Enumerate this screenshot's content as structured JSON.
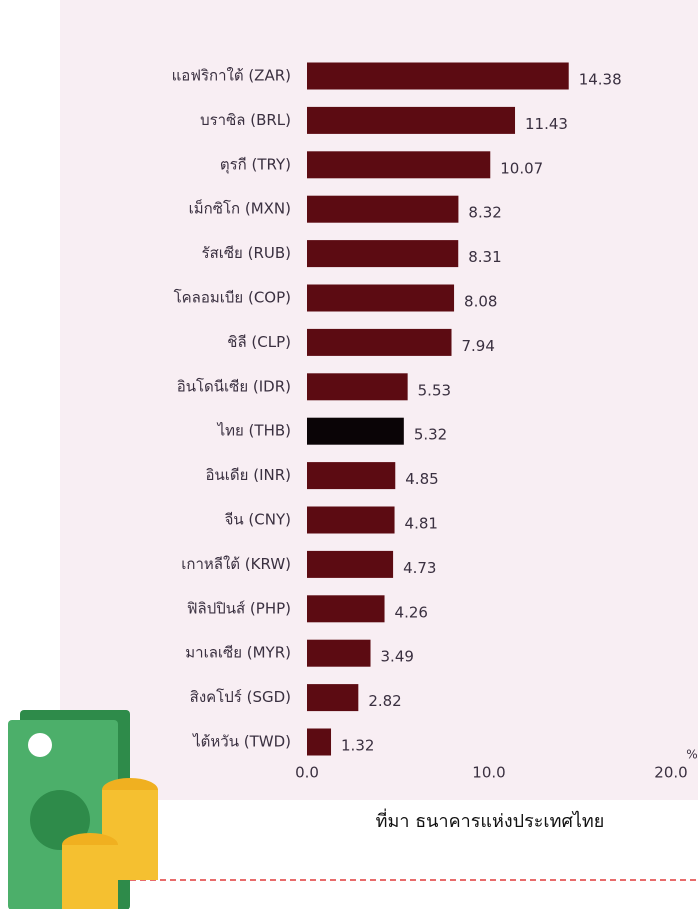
{
  "chart_data": {
    "type": "bar",
    "orientation": "horizontal",
    "categories": [
      "แอฟริกาใต้ (ZAR)",
      "บราซิล (BRL)",
      "ตุรกี (TRY)",
      "เม็กซิโก (MXN)",
      "รัสเซีย (RUB)",
      "โคลอมเบีย (COP)",
      "ชิลี (CLP)",
      "อินโดนีเซีย (IDR)",
      "ไทย (THB)",
      "อินเดีย (INR)",
      "จีน (CNY)",
      "เกาหลีใต้ (KRW)",
      "ฟิลิปปินส์ (PHP)",
      "มาเลเซีย (MYR)",
      "สิงคโปร์ (SGD)",
      "ไต้หวัน (TWD)"
    ],
    "values": [
      14.38,
      11.43,
      10.07,
      8.32,
      8.31,
      8.08,
      7.94,
      5.53,
      5.32,
      4.85,
      4.81,
      4.73,
      4.26,
      3.49,
      2.82,
      1.32
    ],
    "colors": [
      "#5c0b12",
      "#5c0b12",
      "#5c0b12",
      "#5c0b12",
      "#5c0b12",
      "#5c0b12",
      "#5c0b12",
      "#5c0b12",
      "#0a0406",
      "#5c0b12",
      "#5c0b12",
      "#5c0b12",
      "#5c0b12",
      "#5c0b12",
      "#5c0b12",
      "#5c0b12"
    ],
    "xlim": [
      0,
      20
    ],
    "xticks": [
      {
        "value": 0,
        "label": "0.0"
      },
      {
        "value": 10,
        "label": "10.0"
      },
      {
        "value": 20,
        "label": "20.0"
      }
    ],
    "x_label": "%",
    "source": "ที่มา ธนาคารแห่งประเทศไทย"
  }
}
